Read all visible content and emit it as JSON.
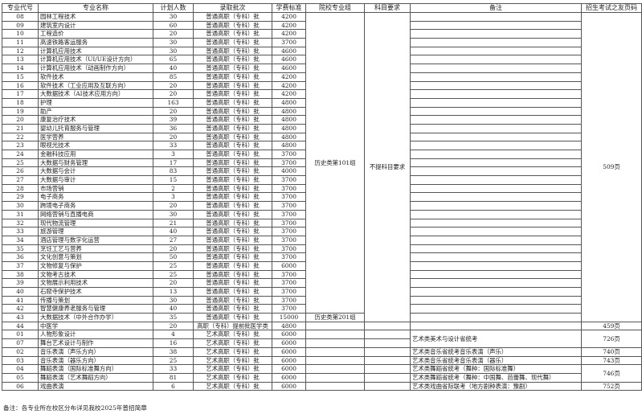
{
  "headers": [
    "专业代号",
    "专业名称",
    "计划人数",
    "录取批次",
    "学费标准",
    "院校专业组",
    "科目要求",
    "备注",
    "招生考试之友页码"
  ],
  "rows": [
    {
      "code": "08",
      "name": "园林工程技术",
      "plan": "30",
      "batch": "普通高职（专科）批",
      "fee": "4200"
    },
    {
      "code": "09",
      "name": "建筑室内设计",
      "plan": "60",
      "batch": "普通高职（专科）批",
      "fee": "4200"
    },
    {
      "code": "10",
      "name": "工程造价",
      "plan": "20",
      "batch": "普通高职（专科）批",
      "fee": "4200"
    },
    {
      "code": "11",
      "name": "高速铁路客运服务",
      "plan": "30",
      "batch": "普通高职（专科）批",
      "fee": "3700"
    },
    {
      "code": "12",
      "name": "计算机应用技术",
      "plan": "30",
      "batch": "普通高职（专科）批",
      "fee": "4600"
    },
    {
      "code": "13",
      "name": "计算机应用技术（UI/UE设计方向）",
      "plan": "65",
      "batch": "普通高职（专科）批",
      "fee": "4600"
    },
    {
      "code": "14",
      "name": "计算机应用技术（动画制作方向）",
      "plan": "40",
      "batch": "普通高职（专科）批",
      "fee": "4600"
    },
    {
      "code": "15",
      "name": "软件技术",
      "plan": "85",
      "batch": "普通高职（专科）批",
      "fee": "4200"
    },
    {
      "code": "16",
      "name": "软件技术（工业应用及互联方向）",
      "plan": "20",
      "batch": "普通高职（专科）批",
      "fee": "4200"
    },
    {
      "code": "17",
      "name": "大数据技术（AI技术应用方向）",
      "plan": "20",
      "batch": "普通高职（专科）批",
      "fee": "4200"
    },
    {
      "code": "18",
      "name": "护理",
      "plan": "163",
      "batch": "普通高职（专科）批",
      "fee": "4800"
    },
    {
      "code": "19",
      "name": "助产",
      "plan": "20",
      "batch": "普通高职（专科）批",
      "fee": "4800"
    },
    {
      "code": "20",
      "name": "康复治疗技术",
      "plan": "39",
      "batch": "普通高职（专科）批",
      "fee": "4800"
    },
    {
      "code": "21",
      "name": "婴幼儿托育服务与管理",
      "plan": "36",
      "batch": "普通高职（专科）批",
      "fee": "4800"
    },
    {
      "code": "22",
      "name": "医学营养",
      "plan": "20",
      "batch": "普通高职（专科）批",
      "fee": "4800"
    },
    {
      "code": "23",
      "name": "眼视光技术",
      "plan": "33",
      "batch": "普通高职（专科）批",
      "fee": "4800"
    },
    {
      "code": "24",
      "name": "金融科技应用",
      "plan": "3",
      "batch": "普通高职（专科）批",
      "fee": "3700"
    },
    {
      "code": "25",
      "name": "大数据与财务管理",
      "plan": "17",
      "batch": "普通高职（专科）批",
      "fee": "3700"
    },
    {
      "code": "26",
      "name": "大数据与会计",
      "plan": "83",
      "batch": "普通高职（专科）批",
      "fee": "4000"
    },
    {
      "code": "27",
      "name": "大数据与审计",
      "plan": "15",
      "batch": "普通高职（专科）批",
      "fee": "3700"
    },
    {
      "code": "28",
      "name": "市场营销",
      "plan": "2",
      "batch": "普通高职（专科）批",
      "fee": "3700"
    },
    {
      "code": "29",
      "name": "电子商务",
      "plan": "3",
      "batch": "普通高职（专科）批",
      "fee": "3700"
    },
    {
      "code": "30",
      "name": "跨境电子商务",
      "plan": "20",
      "batch": "普通高职（专科）批",
      "fee": "3700"
    },
    {
      "code": "31",
      "name": "网络营销与直播电商",
      "plan": "30",
      "batch": "普通高职（专科）批",
      "fee": "3700"
    },
    {
      "code": "32",
      "name": "现代物流管理",
      "plan": "21",
      "batch": "普通高职（专科）批",
      "fee": "3700"
    },
    {
      "code": "33",
      "name": "旅游管理",
      "plan": "40",
      "batch": "普通高职（专科）批",
      "fee": "3700"
    },
    {
      "code": "34",
      "name": "酒店管理与数字化运营",
      "plan": "27",
      "batch": "普通高职（专科）批",
      "fee": "3700"
    },
    {
      "code": "35",
      "name": "烹饪工艺与营养",
      "plan": "20",
      "batch": "普通高职（专科）批",
      "fee": "3700"
    },
    {
      "code": "36",
      "name": "文化创意与策划",
      "plan": "50",
      "batch": "普通高职（专科）批",
      "fee": "3700"
    },
    {
      "code": "37",
      "name": "文物修复与保护",
      "plan": "25",
      "batch": "普通高职（专科）批",
      "fee": "6000"
    },
    {
      "code": "38",
      "name": "文物考古技术",
      "plan": "25",
      "batch": "普通高职（专科）批",
      "fee": "3700"
    },
    {
      "code": "39",
      "name": "文物展示利用技术",
      "plan": "20",
      "batch": "普通高职（专科）批",
      "fee": "3700"
    },
    {
      "code": "40",
      "name": "石窟寺保护技术",
      "plan": "13",
      "batch": "普通高职（专科）批",
      "fee": "3700"
    },
    {
      "code": "41",
      "name": "传播与策划",
      "plan": "30",
      "batch": "普通高职（专科）批",
      "fee": "3700"
    },
    {
      "code": "42",
      "name": "智慧健康养老服务与管理",
      "plan": "40",
      "batch": "普通高职（专科）批",
      "fee": "3700"
    },
    {
      "code": "43",
      "name": "大数据技术（中外合作办学）",
      "plan": "35",
      "batch": "普通高职（专科）批",
      "fee": "15000"
    },
    {
      "code": "44",
      "name": "中医学",
      "plan": "20",
      "batch": "高职（专科）提前批医学类",
      "fee": "4800"
    },
    {
      "code": "01",
      "name": "人物形象设计",
      "plan": "4",
      "batch": "艺术高职（专科）批",
      "fee": "6000"
    },
    {
      "code": "07",
      "name": "舞台艺术设计与制作",
      "plan": "16",
      "batch": "艺术高职（专科）批",
      "fee": "6000"
    },
    {
      "code": "02",
      "name": "音乐表演（声乐方向）",
      "plan": "38",
      "batch": "艺术高职（专科）批",
      "fee": "6000"
    },
    {
      "code": "03",
      "name": "音乐表演（器乐方向）",
      "plan": "25",
      "batch": "艺术高职（专科）批",
      "fee": "6000"
    },
    {
      "code": "04",
      "name": "舞蹈表演（国际标准舞方向）",
      "plan": "33",
      "batch": "艺术高职（专科）批",
      "fee": "6000"
    },
    {
      "code": "05",
      "name": "舞蹈表演（艺术舞蹈方向）",
      "plan": "81",
      "batch": "艺术高职（专科）批",
      "fee": "6000"
    },
    {
      "code": "06",
      "name": "戏曲表演",
      "plan": "6",
      "batch": "艺术高职（专科）批",
      "fee": "6000"
    }
  ],
  "groups": [
    "历史类第101组",
    "历史类第201组"
  ],
  "subject_requirement": "不提科目要求",
  "notes": [
    "艺术类美术与设计省统考",
    "艺术类音乐省统考音乐表演（声乐）",
    "艺术类音乐省统考音乐表演（器乐）",
    "艺术类舞蹈省统考（舞种：国际标准舞）",
    "艺术类舞蹈省统考（舞种：中国舞、芭蕾舞、现代舞）",
    "艺术类戏曲省际联考（地方剧种表演：豫剧）"
  ],
  "pages": [
    "509页",
    "459页",
    "726页",
    "740页",
    "743页",
    "746页",
    "752页"
  ],
  "footer": "备注：各专业所在校区分布详见我校2025年普招简章"
}
